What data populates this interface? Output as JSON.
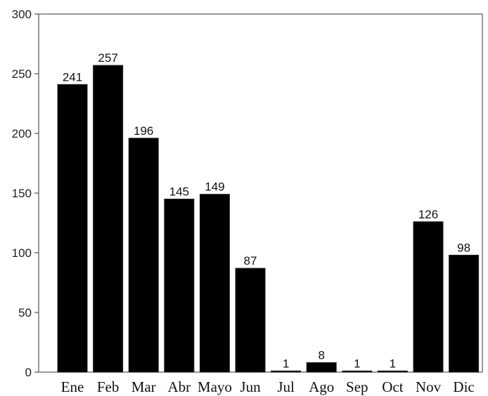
{
  "chart_data": {
    "type": "bar",
    "title": "",
    "xlabel": "",
    "ylabel": "",
    "categories": [
      "Ene",
      "Feb",
      "Mar",
      "Abr",
      "Mayo",
      "Jun",
      "Jul",
      "Ago",
      "Sep",
      "Oct",
      "Nov",
      "Dic"
    ],
    "values": [
      241,
      257,
      196,
      145,
      149,
      87,
      1,
      8,
      1,
      1,
      126,
      98
    ],
    "data_labels": [
      "241",
      "257",
      "196",
      "145",
      "149",
      "87",
      "1",
      "8",
      "1",
      "1",
      "126",
      "98"
    ],
    "ylim": [
      0,
      300
    ],
    "yticks": [
      0,
      50,
      100,
      150,
      200,
      250,
      300
    ],
    "ytick_labels": [
      "0",
      "50",
      "100",
      "150",
      "200",
      "250",
      "300"
    ],
    "grid": false,
    "legend": "none",
    "colors": {
      "bar": "#000000",
      "axis": "#555555",
      "background": "#ffffff"
    }
  }
}
